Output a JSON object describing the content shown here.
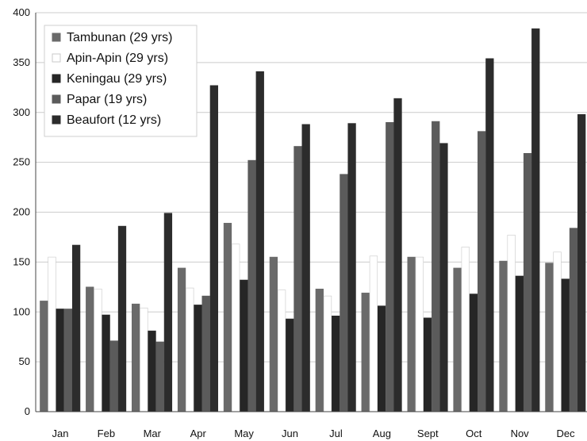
{
  "chart_data": {
    "type": "bar",
    "categories": [
      "Jan",
      "Feb",
      "Mar",
      "Apr",
      "May",
      "Jun",
      "Jul",
      "Aug",
      "Sept",
      "Oct",
      "Nov",
      "Dec"
    ],
    "series": [
      {
        "name": "Tambunan (29 yrs)",
        "color": "#6a6a6a",
        "stroke": "#6a6a6a",
        "values": [
          111,
          125,
          108,
          144,
          189,
          155,
          123,
          119,
          155,
          144,
          151,
          149
        ]
      },
      {
        "name": "Apin-Apin (29 yrs)",
        "color": "#ffffff",
        "stroke": "#c8c8c8",
        "values": [
          155,
          123,
          104,
          124,
          168,
          122,
          116,
          156,
          155,
          165,
          177,
          160
        ]
      },
      {
        "name": "Keningau (29 yrs)",
        "color": "#262626",
        "stroke": "#262626",
        "values": [
          103,
          97,
          81,
          107,
          132,
          93,
          96,
          106,
          94,
          118,
          136,
          133
        ]
      },
      {
        "name": "Papar (19 yrs)",
        "color": "#5b5b5b",
        "stroke": "#5b5b5b",
        "values": [
          103,
          71,
          70,
          116,
          252,
          266,
          238,
          290,
          291,
          281,
          259,
          184
        ]
      },
      {
        "name": "Beaufort (12 yrs)",
        "color": "#2c2c2c",
        "stroke": "#2c2c2c",
        "values": [
          167,
          186,
          199,
          327,
          341,
          288,
          289,
          314,
          269,
          354,
          384,
          298
        ]
      }
    ],
    "ylim": [
      0,
      400
    ],
    "yticks": [
      0,
      50,
      100,
      150,
      200,
      250,
      300,
      350,
      400
    ],
    "grid": true,
    "legend_position": "top-left",
    "title": "",
    "xlabel": "",
    "ylabel": ""
  }
}
